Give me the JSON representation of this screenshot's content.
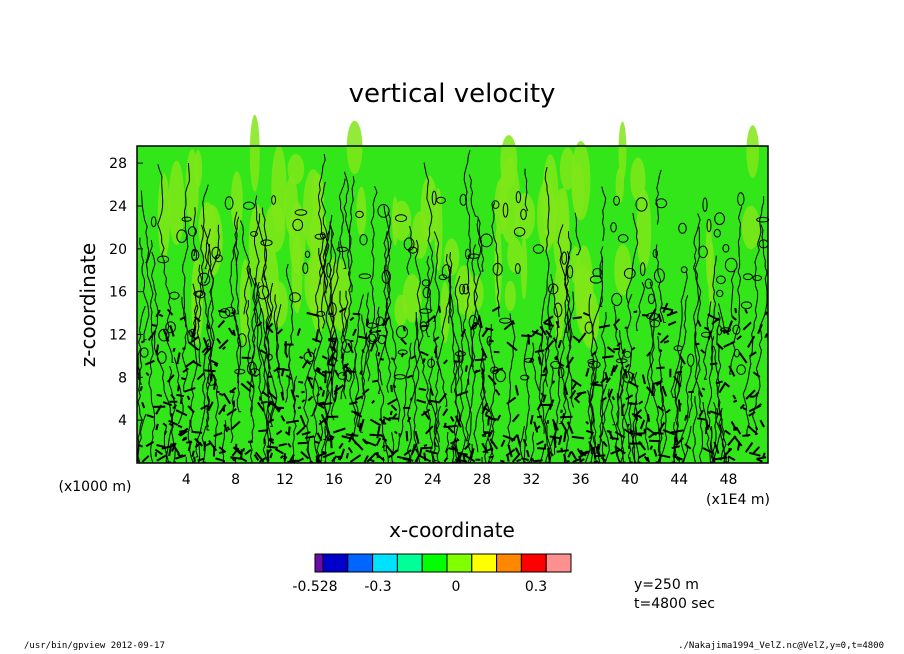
{
  "chart_data": {
    "type": "heatmap",
    "title": "vertical velocity",
    "xlabel": "x-coordinate",
    "ylabel": "z-coordinate",
    "x_unit": "(x1E4 m)",
    "y_unit": "(x1000 m)",
    "xlim": [
      0,
      51.2
    ],
    "ylim": [
      0,
      29.6
    ],
    "x_ticks": [
      "4",
      "8",
      "12",
      "16",
      "20",
      "24",
      "28",
      "32",
      "36",
      "40",
      "44",
      "48"
    ],
    "y_ticks": [
      "4",
      "8",
      "12",
      "16",
      "20",
      "24",
      "28"
    ],
    "colorbar": {
      "colors": [
        "#6a0ca8",
        "#0000cc",
        "#0066ff",
        "#00e0ff",
        "#00ff99",
        "#00ff00",
        "#80ff00",
        "#ffff00",
        "#ff8800",
        "#ff0000",
        "#ff9090"
      ],
      "labels": [
        "-0.528",
        "-0.3",
        "0",
        "0.3"
      ]
    },
    "field_colors": [
      "#33e61a",
      "#80e619"
    ],
    "contour_color": "#000000",
    "annotations": [
      "y=250 m",
      "t=4800 sec"
    ]
  },
  "footer": {
    "left": "/usr/bin/gpview   2012-09-17",
    "right": "./Nakajima1994_VelZ.nc@VelZ,y=0,t=4800"
  }
}
